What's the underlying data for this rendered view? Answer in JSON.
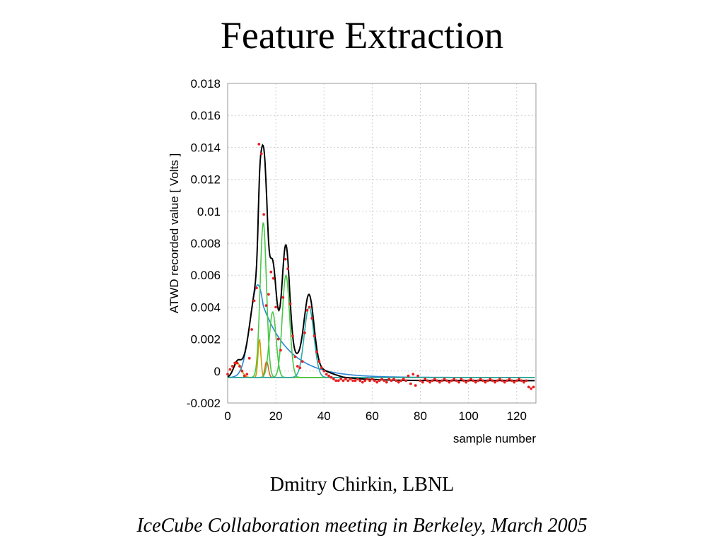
{
  "slide": {
    "title": "Feature Extraction",
    "author": "Dmitry Chirkin, LBNL",
    "meeting": "IceCube Collaboration meeting in Berkeley, March 2005"
  },
  "chart_data": {
    "type": "line",
    "xlabel": "sample number",
    "ylabel": "ATWD recorded value [ Volts ]",
    "xlim": [
      0,
      128
    ],
    "ylim": [
      -0.002,
      0.018
    ],
    "x_ticks": [
      0,
      20,
      40,
      60,
      80,
      100,
      120
    ],
    "y_ticks": [
      -0.002,
      0,
      0.002,
      0.004,
      0.006,
      0.008,
      0.01,
      0.012,
      0.014,
      0.016,
      0.018
    ],
    "y_tick_labels": [
      "-0.002",
      "0",
      "0.002",
      "0.004",
      "0.006",
      "0.008",
      "0.01",
      "0.012",
      "0.014",
      "0.016",
      "0.018"
    ],
    "grid": true,
    "baseline": -0.0004,
    "tail_level": -0.0006,
    "data_color": "#e82020",
    "fit_color": "#000000",
    "series": [
      {
        "role": "component",
        "color": "#c8a000",
        "pulses": [
          {
            "center": 4,
            "amplitude": 0.0009,
            "width": 1.6
          }
        ]
      },
      {
        "role": "component",
        "color": "#2a86d8",
        "pulses": [
          {
            "center": 12.5,
            "amplitude": 0.0058,
            "width": 3.2,
            "tail": 11
          }
        ]
      },
      {
        "role": "component",
        "color": "#48c848",
        "pulses": [
          {
            "center": 14.8,
            "amplitude": 0.0097,
            "width": 1.3
          }
        ]
      },
      {
        "role": "component",
        "color": "#c8a000",
        "pulses": [
          {
            "center": 13.2,
            "amplitude": 0.0024,
            "width": 0.6
          }
        ]
      },
      {
        "role": "component",
        "color": "#e06020",
        "pulses": [
          {
            "center": 16.2,
            "amplitude": 0.001,
            "width": 0.7
          }
        ]
      },
      {
        "role": "component",
        "color": "#48c848",
        "pulses": [
          {
            "center": 18.7,
            "amplitude": 0.0041,
            "width": 1.4
          }
        ]
      },
      {
        "role": "component",
        "color": "#48c848",
        "pulses": [
          {
            "center": 24.2,
            "amplitude": 0.0064,
            "width": 1.5
          }
        ]
      },
      {
        "role": "component",
        "color": "#2aa8a8",
        "pulses": [
          {
            "center": 33.8,
            "amplitude": 0.0044,
            "width": 2.0
          }
        ]
      }
    ],
    "data_points": [
      [
        0,
        -0.0002
      ],
      [
        1,
        0.0001
      ],
      [
        2,
        0.0003
      ],
      [
        3,
        0.0005
      ],
      [
        4,
        0.0005
      ],
      [
        5,
        0.0003
      ],
      [
        6,
        0.0
      ],
      [
        7,
        -0.0003
      ],
      [
        8,
        -0.0002
      ],
      [
        9,
        0.0008
      ],
      [
        10,
        0.0026
      ],
      [
        11,
        0.0044
      ],
      [
        12,
        0.0052
      ],
      [
        13,
        0.0142
      ],
      [
        14,
        0.0136
      ],
      [
        15,
        0.0098
      ],
      [
        16,
        0.0041
      ],
      [
        17,
        0.0048
      ],
      [
        18,
        0.0062
      ],
      [
        19,
        0.0058
      ],
      [
        20,
        0.004
      ],
      [
        21,
        0.002
      ],
      [
        22,
        0.0013
      ],
      [
        23,
        0.0046
      ],
      [
        24,
        0.007
      ],
      [
        25,
        0.0064
      ],
      [
        26,
        0.0042
      ],
      [
        27,
        0.0022
      ],
      [
        28,
        0.0009
      ],
      [
        29,
        0.0003
      ],
      [
        30,
        0.0002
      ],
      [
        31,
        0.0006
      ],
      [
        32,
        0.0024
      ],
      [
        33,
        0.0038
      ],
      [
        34,
        0.004
      ],
      [
        35,
        0.0033
      ],
      [
        36,
        0.0022
      ],
      [
        37,
        0.0012
      ],
      [
        38,
        0.0006
      ],
      [
        39,
        0.0002
      ],
      [
        40,
        0.0
      ],
      [
        41,
        -0.0002
      ],
      [
        42,
        -0.0003
      ],
      [
        43,
        -0.0004
      ],
      [
        44,
        -0.0005
      ],
      [
        45,
        -0.0006
      ],
      [
        46,
        -0.0006
      ],
      [
        47,
        -0.0005
      ],
      [
        48,
        -0.0006
      ],
      [
        49,
        -0.0005
      ],
      [
        50,
        -0.0006
      ],
      [
        51,
        -0.0005
      ],
      [
        52,
        -0.0006
      ],
      [
        53,
        -0.0006
      ],
      [
        54,
        -0.0005
      ],
      [
        55,
        -0.0006
      ],
      [
        56,
        -0.0007
      ],
      [
        57,
        -0.0006
      ],
      [
        58,
        -0.0005
      ],
      [
        59,
        -0.0006
      ],
      [
        60,
        -0.0005
      ],
      [
        61,
        -0.0006
      ],
      [
        62,
        -0.0007
      ],
      [
        63,
        -0.0006
      ],
      [
        64,
        -0.0005
      ],
      [
        65,
        -0.0006
      ],
      [
        66,
        -0.0007
      ],
      [
        67,
        -0.0005
      ],
      [
        68,
        -0.0006
      ],
      [
        69,
        -0.0005
      ],
      [
        70,
        -0.0006
      ],
      [
        71,
        -0.0007
      ],
      [
        72,
        -0.0006
      ],
      [
        73,
        -0.0005
      ],
      [
        74,
        -0.0006
      ],
      [
        75,
        -0.0003
      ],
      [
        76,
        -0.0008
      ],
      [
        77,
        -0.0002
      ],
      [
        78,
        -0.0009
      ],
      [
        79,
        -0.0003
      ],
      [
        80,
        -0.0006
      ],
      [
        81,
        -0.0007
      ],
      [
        82,
        -0.0005
      ],
      [
        83,
        -0.0006
      ],
      [
        84,
        -0.0007
      ],
      [
        85,
        -0.0006
      ],
      [
        86,
        -0.0005
      ],
      [
        87,
        -0.0006
      ],
      [
        88,
        -0.0007
      ],
      [
        89,
        -0.0006
      ],
      [
        90,
        -0.0005
      ],
      [
        91,
        -0.0006
      ],
      [
        92,
        -0.0007
      ],
      [
        93,
        -0.0006
      ],
      [
        94,
        -0.0005
      ],
      [
        95,
        -0.0006
      ],
      [
        96,
        -0.0007
      ],
      [
        97,
        -0.0005
      ],
      [
        98,
        -0.0006
      ],
      [
        99,
        -0.0007
      ],
      [
        100,
        -0.0006
      ],
      [
        101,
        -0.0005
      ],
      [
        102,
        -0.0006
      ],
      [
        103,
        -0.0007
      ],
      [
        104,
        -0.0006
      ],
      [
        105,
        -0.0005
      ],
      [
        106,
        -0.0006
      ],
      [
        107,
        -0.0007
      ],
      [
        108,
        -0.0006
      ],
      [
        109,
        -0.0005
      ],
      [
        110,
        -0.0006
      ],
      [
        111,
        -0.0007
      ],
      [
        112,
        -0.0006
      ],
      [
        113,
        -0.0005
      ],
      [
        114,
        -0.0006
      ],
      [
        115,
        -0.0007
      ],
      [
        116,
        -0.0006
      ],
      [
        117,
        -0.0005
      ],
      [
        118,
        -0.0006
      ],
      [
        119,
        -0.0007
      ],
      [
        120,
        -0.0006
      ],
      [
        121,
        -0.0005
      ],
      [
        122,
        -0.0006
      ],
      [
        123,
        -0.0007
      ],
      [
        124,
        -0.0006
      ],
      [
        125,
        -0.001
      ],
      [
        126,
        -0.0011
      ],
      [
        127,
        -0.001
      ]
    ]
  }
}
